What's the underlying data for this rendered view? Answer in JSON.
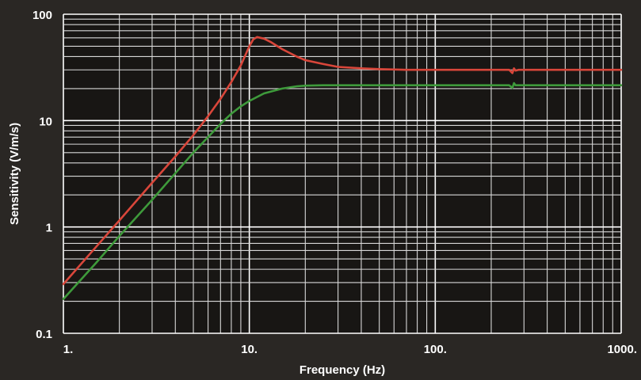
{
  "chart_data": {
    "type": "line",
    "title": "",
    "xlabel": "Frequency (Hz)",
    "ylabel": "Sensitivity (V/m/s)",
    "x_scale": "log",
    "y_scale": "log",
    "xlim": [
      1,
      1000
    ],
    "ylim": [
      0.1,
      100
    ],
    "grid": true,
    "legend": "none",
    "x_ticks": [
      {
        "value": 1,
        "label": "1."
      },
      {
        "value": 10,
        "label": "10."
      },
      {
        "value": 100,
        "label": "100."
      },
      {
        "value": 1000,
        "label": "1000."
      }
    ],
    "y_ticks": [
      {
        "value": 0.1,
        "label": "0.1"
      },
      {
        "value": 1,
        "label": "1"
      },
      {
        "value": 10,
        "label": "10"
      },
      {
        "value": 100,
        "label": "100"
      }
    ],
    "series": [
      {
        "color": "#d9463a",
        "x": [
          1,
          1.5,
          2,
          3,
          4,
          5,
          6,
          7,
          8,
          9,
          10,
          10.5,
          11,
          12,
          13,
          15,
          18,
          20,
          25,
          30,
          40,
          50,
          70,
          100,
          150,
          200,
          250,
          260,
          265,
          270,
          280,
          300,
          400,
          500,
          700,
          1000
        ],
        "y": [
          0.29,
          0.65,
          1.15,
          2.6,
          4.6,
          7.3,
          11,
          16,
          23,
          33,
          50,
          58,
          61,
          59,
          55,
          47,
          40,
          37,
          34,
          32,
          31,
          30.5,
          30,
          30,
          30,
          30,
          30,
          28,
          31,
          29.5,
          30,
          30,
          30,
          30,
          30,
          30
        ]
      },
      {
        "color": "#3e9a3b",
        "x": [
          1,
          1.5,
          2,
          3,
          4,
          5,
          6,
          7,
          8,
          9,
          10,
          12,
          15,
          18,
          20,
          25,
          30,
          50,
          100,
          200,
          250,
          260,
          265,
          270,
          280,
          300,
          500,
          1000
        ],
        "y": [
          0.21,
          0.46,
          0.82,
          1.8,
          3.2,
          5.0,
          7.0,
          9.3,
          11.6,
          13.6,
          15.3,
          18,
          20,
          21,
          21.3,
          21.5,
          21.5,
          21.5,
          21.5,
          21.5,
          21.5,
          20.3,
          22.5,
          21.5,
          21.5,
          21.5,
          21.5,
          21.5
        ]
      }
    ]
  },
  "colors": {
    "background": "#2a2724",
    "plot_background": "#181614",
    "grid_major": "#ffffff",
    "grid_minor": "#d8d8d8"
  }
}
